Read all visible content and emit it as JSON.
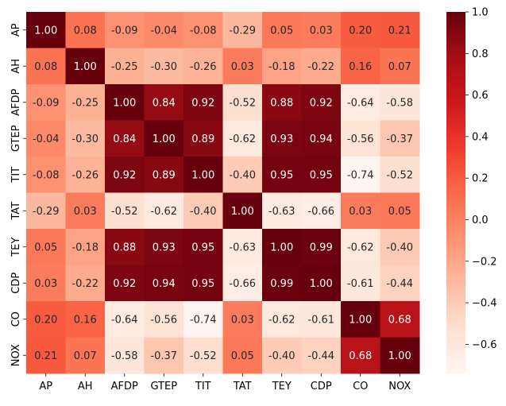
{
  "chart_data": {
    "type": "heatmap",
    "title": "",
    "xlabel": "",
    "ylabel": "",
    "x_labels": [
      "AP",
      "AH",
      "AFDP",
      "GTEP",
      "TIT",
      "TAT",
      "TEY",
      "CDP",
      "CO",
      "NOX"
    ],
    "y_labels": [
      "AP",
      "AH",
      "AFDP",
      "GTEP",
      "TIT",
      "TAT",
      "TEY",
      "CDP",
      "CO",
      "NOX"
    ],
    "values": [
      [
        1.0,
        0.08,
        -0.09,
        -0.04,
        -0.08,
        -0.29,
        0.05,
        0.03,
        0.2,
        0.21
      ],
      [
        0.08,
        1.0,
        -0.25,
        -0.3,
        -0.26,
        0.03,
        -0.18,
        -0.22,
        0.16,
        0.07
      ],
      [
        -0.09,
        -0.25,
        1.0,
        0.84,
        0.92,
        -0.52,
        0.88,
        0.92,
        -0.64,
        -0.58
      ],
      [
        -0.04,
        -0.3,
        0.84,
        1.0,
        0.89,
        -0.62,
        0.93,
        0.94,
        -0.56,
        -0.37
      ],
      [
        -0.08,
        -0.26,
        0.92,
        0.89,
        1.0,
        -0.4,
        0.95,
        0.95,
        -0.74,
        -0.52
      ],
      [
        -0.29,
        0.03,
        -0.52,
        -0.62,
        -0.4,
        1.0,
        -0.63,
        -0.66,
        0.03,
        0.05
      ],
      [
        0.05,
        -0.18,
        0.88,
        0.93,
        0.95,
        -0.63,
        1.0,
        0.99,
        -0.62,
        -0.4
      ],
      [
        0.03,
        -0.22,
        0.92,
        0.94,
        0.95,
        -0.66,
        0.99,
        1.0,
        -0.61,
        -0.44
      ],
      [
        0.2,
        0.16,
        -0.64,
        -0.56,
        -0.74,
        0.03,
        -0.62,
        -0.61,
        1.0,
        0.68
      ],
      [
        0.21,
        0.07,
        -0.58,
        -0.37,
        -0.52,
        0.05,
        -0.4,
        -0.44,
        0.68,
        1.0
      ]
    ],
    "annotation_format": "2 decimals",
    "colormap": "Reds",
    "color_range": [
      -0.74,
      1.0
    ],
    "colorbar_ticks": [
      -0.6,
      -0.4,
      -0.2,
      0.0,
      0.2,
      0.4,
      0.6,
      0.8,
      1.0
    ],
    "colorbar_tick_labels": [
      "−0.6",
      "−0.4",
      "−0.2",
      "0.0",
      "0.2",
      "0.4",
      "0.6",
      "0.8",
      "1.0"
    ],
    "legend_placement": "right colorbar",
    "grid": false
  }
}
